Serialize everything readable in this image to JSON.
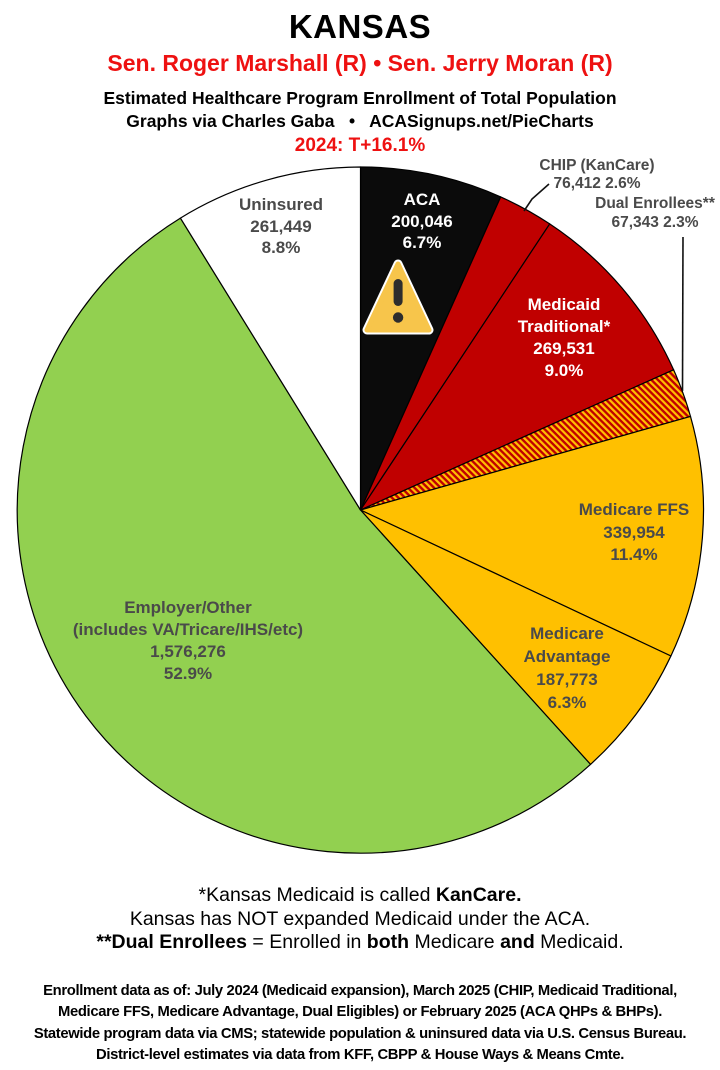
{
  "header": {
    "state": "KANSAS",
    "senators": "Sen. Roger Marshall (R) • Sen. Jerry Moran (R)",
    "subtitle_line1": "Estimated Healthcare Program Enrollment of Total Population",
    "subtitle_line2": "Graphs via Charles Gaba   •   ACASignups.net/PieCharts",
    "trend": "2024: T+16.1%",
    "accent_red": "#ee1111"
  },
  "chart_data": {
    "type": "pie",
    "title": "KANSAS — Estimated Healthcare Program Enrollment of Total Population",
    "start": "12 o'clock",
    "direction": "clockwise",
    "slices": [
      {
        "id": "aca",
        "label": "ACA",
        "value": 200046,
        "pct": 6.7,
        "color": "#0b0b0b",
        "text_color": "#ffffff",
        "lines": [
          "ACA",
          "200,046",
          "6.7%"
        ],
        "marker": "warning-icon"
      },
      {
        "id": "chip",
        "label": "CHIP (KanCare)",
        "value": 76412,
        "pct": 2.6,
        "color": "#c00000",
        "label_outside": true,
        "lines": [
          "CHIP (KanCare)",
          "76,412 2.6%"
        ]
      },
      {
        "id": "medicaid-traditional",
        "label": "Medicaid Traditional*",
        "value": 269531,
        "pct": 9.0,
        "color": "#c00000",
        "text_color": "#ffffff",
        "lines": [
          "Medicaid",
          "Traditional*",
          "269,531",
          "9.0%"
        ]
      },
      {
        "id": "dual-enrollees",
        "label": "Dual Enrollees**",
        "value": 67343,
        "pct": 2.3,
        "color": "hatch",
        "hatch_colors": [
          "#c00000",
          "#ffc000"
        ],
        "label_outside": true,
        "lines": [
          "Dual Enrollees**",
          "67,343 2.3%"
        ]
      },
      {
        "id": "medicare-ffs",
        "label": "Medicare FFS",
        "value": 339954,
        "pct": 11.4,
        "color": "#ffc000",
        "lines": [
          "Medicare FFS",
          "339,954",
          "11.4%"
        ]
      },
      {
        "id": "medicare-advantage",
        "label": "Medicare Advantage",
        "value": 187773,
        "pct": 6.3,
        "color": "#ffc000",
        "lines": [
          "Medicare",
          "Advantage",
          "187,773",
          "6.3%"
        ]
      },
      {
        "id": "employer-other",
        "label": "Employer/Other (includes VA/Tricare/IHS/etc)",
        "value": 1576276,
        "pct": 52.9,
        "color": "#92d050",
        "lines": [
          "Employer/Other",
          "(includes VA/Tricare/IHS/etc)",
          "1,576,276",
          "52.9%"
        ]
      },
      {
        "id": "uninsured",
        "label": "Uninsured",
        "value": 261449,
        "pct": 8.8,
        "color": "#ffffff",
        "lines": [
          "Uninsured",
          "261,449",
          "8.8%"
        ]
      }
    ]
  },
  "footnotes": [
    {
      "runs": [
        {
          "text": "*Kansas Medicaid is called ",
          "bold": false
        },
        {
          "text": "KanCare.",
          "bold": true
        }
      ]
    },
    {
      "runs": [
        {
          "text": "Kansas has NOT expanded Medicaid under the ACA.",
          "bold": false
        }
      ]
    },
    {
      "runs": [
        {
          "text": "**Dual Enrollees",
          "bold": true
        },
        {
          "text": " = Enrolled in ",
          "bold": false
        },
        {
          "text": "both",
          "bold": true
        },
        {
          "text": " Medicare ",
          "bold": false
        },
        {
          "text": "and",
          "bold": true
        },
        {
          "text": " Medicaid.",
          "bold": false
        }
      ]
    }
  ],
  "source_block": [
    "Enrollment data as of: July 2024 (Medicaid expansion), March 2025 (CHIP, Medicaid Traditional,",
    "Medicare FFS, Medicare Advantage, Dual Eligibles) or February 2025 (ACA QHPs & BHPs).",
    "Statewide program data via CMS; statewide population & uninsured data via U.S. Census Bureau.",
    "District-level estimates via data from KFF, CBPP & House Ways & Means Cmte."
  ]
}
